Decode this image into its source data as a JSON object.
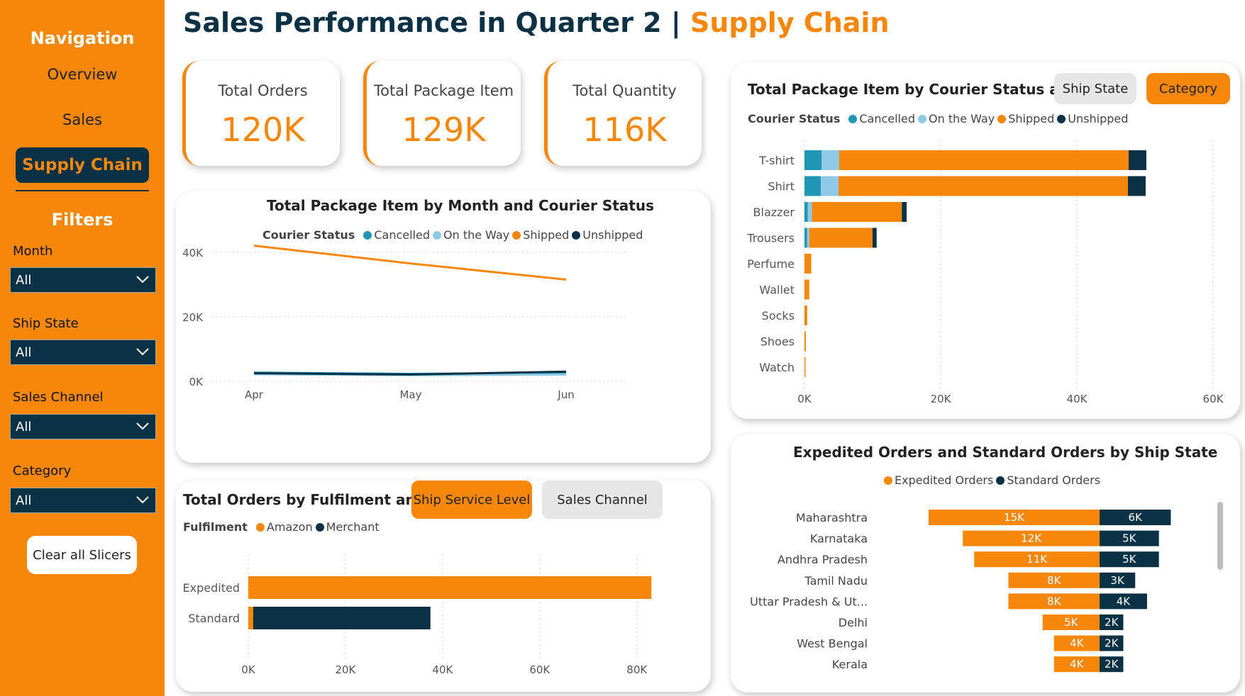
{
  "sidebar": {
    "nav_title": "Navigation",
    "overview": "Overview",
    "sales": "Sales",
    "supply_chain": "Supply Chain",
    "filters_title": "Filters",
    "filters": [
      {
        "label": "Month",
        "value": "All"
      },
      {
        "label": "Ship State",
        "value": "All"
      },
      {
        "label": "Sales Channel",
        "value": "All"
      },
      {
        "label": "Category",
        "value": "All"
      }
    ],
    "clear": "Clear all Slicers"
  },
  "header": {
    "title": "Sales Performance in Quarter 2",
    "separator": "|",
    "subtitle": "Supply Chain"
  },
  "kpis": [
    {
      "label": "Total Orders",
      "value": "120K"
    },
    {
      "label": "Total Package Item",
      "value": "129K"
    },
    {
      "label": "Total Quantity",
      "value": "116K"
    }
  ],
  "colors": {
    "orange": "#F7870B",
    "navy": "#0B3144",
    "cancelled": "#2196B5",
    "on_the_way": "#8ECAE6",
    "shipped": "#F7870B",
    "unshipped": "#0B3144"
  },
  "line_chart": {
    "title": "Total Package Item by Month and Courier Status",
    "legend_title": "Courier Status",
    "legend": [
      "Cancelled",
      "On the Way",
      "Shipped",
      "Unshipped"
    ]
  },
  "fulfilment_chart": {
    "title": "Total Orders by Fulfilment and",
    "legend_title": "Fulfilment",
    "legend": [
      "Amazon",
      "Merchant"
    ],
    "btn_active": "Ship Service Level",
    "btn_inactive": "Sales Channel"
  },
  "courier_chart": {
    "title": "Total Package Item by Courier Status and",
    "legend_title": "Courier Status",
    "legend": [
      "Cancelled",
      "On the Way",
      "Shipped",
      "Unshipped"
    ],
    "btn_inactive": "Ship State",
    "btn_active": "Category"
  },
  "state_chart": {
    "title": "Expedited Orders and Standard Orders by Ship State",
    "legend": [
      "Expedited Orders",
      "Standard Orders"
    ]
  },
  "chart_data": [
    {
      "type": "line",
      "title": "Total Package Item by Month and Courier Status",
      "categories": [
        "Apr",
        "May",
        "Jun"
      ],
      "series": [
        {
          "name": "Cancelled",
          "values": [
            2700,
            2300,
            2600
          ]
        },
        {
          "name": "On the Way",
          "values": [
            2200,
            1900,
            2100
          ]
        },
        {
          "name": "Shipped",
          "values": [
            42000,
            36500,
            31500
          ]
        },
        {
          "name": "Unshipped",
          "values": [
            2500,
            2100,
            3000
          ]
        }
      ],
      "ylim": [
        0,
        45000
      ],
      "yticks": [
        "0K",
        "20K",
        "40K"
      ],
      "ytick_values": [
        0,
        20000,
        40000
      ],
      "grid": true
    },
    {
      "type": "bar",
      "orientation": "horizontal",
      "stacked": true,
      "title": "Total Orders by Fulfilment and Ship Service Level",
      "categories": [
        "Expedited",
        "Standard"
      ],
      "series": [
        {
          "name": "Amazon",
          "values": [
            83000,
            1000
          ]
        },
        {
          "name": "Merchant",
          "values": [
            0,
            36500
          ]
        }
      ],
      "xlim": [
        0,
        85000
      ],
      "xticks": [
        "0K",
        "20K",
        "40K",
        "60K",
        "80K"
      ],
      "xtick_values": [
        0,
        20000,
        40000,
        60000,
        80000
      ]
    },
    {
      "type": "bar",
      "orientation": "horizontal",
      "stacked": true,
      "title": "Total Package Item by Courier Status and Category",
      "categories": [
        "T-shirt",
        "Shirt",
        "Blazzer",
        "Trousers",
        "Perfume",
        "Wallet",
        "Socks",
        "Shoes",
        "Watch"
      ],
      "series": [
        {
          "name": "Cancelled",
          "values": [
            2500,
            2400,
            500,
            400,
            0,
            0,
            0,
            0,
            0
          ]
        },
        {
          "name": "On the Way",
          "values": [
            2600,
            2600,
            600,
            300,
            0,
            0,
            0,
            0,
            0
          ]
        },
        {
          "name": "Shipped",
          "values": [
            42500,
            42500,
            13200,
            9300,
            1000,
            700,
            400,
            200,
            20
          ]
        },
        {
          "name": "Unshipped",
          "values": [
            2600,
            2600,
            700,
            600,
            0,
            0,
            0,
            0,
            0
          ]
        }
      ],
      "xlim": [
        0,
        60000
      ],
      "xticks": [
        "0K",
        "20K",
        "40K",
        "60K"
      ],
      "xtick_values": [
        0,
        20000,
        40000,
        60000
      ]
    },
    {
      "type": "bar",
      "orientation": "horizontal",
      "diverging": true,
      "title": "Expedited Orders and Standard Orders by Ship State",
      "categories": [
        "Maharashtra",
        "Karnataka",
        "Andhra Pradesh",
        "Tamil Nadu",
        "Uttar Pradesh & Ut...",
        "Delhi",
        "West Bengal",
        "Kerala"
      ],
      "series": [
        {
          "name": "Expedited Orders",
          "values": [
            15000,
            12000,
            11000,
            8000,
            8000,
            5000,
            4000,
            4000
          ],
          "labels": [
            "15K",
            "12K",
            "11K",
            "8K",
            "8K",
            "5K",
            "4K",
            "4K"
          ]
        },
        {
          "name": "Standard Orders",
          "values": [
            6000,
            5000,
            5000,
            3000,
            4000,
            2000,
            2000,
            2000
          ],
          "labels": [
            "6K",
            "5K",
            "5K",
            "3K",
            "4K",
            "2K",
            "2K",
            "2K"
          ]
        }
      ]
    }
  ]
}
